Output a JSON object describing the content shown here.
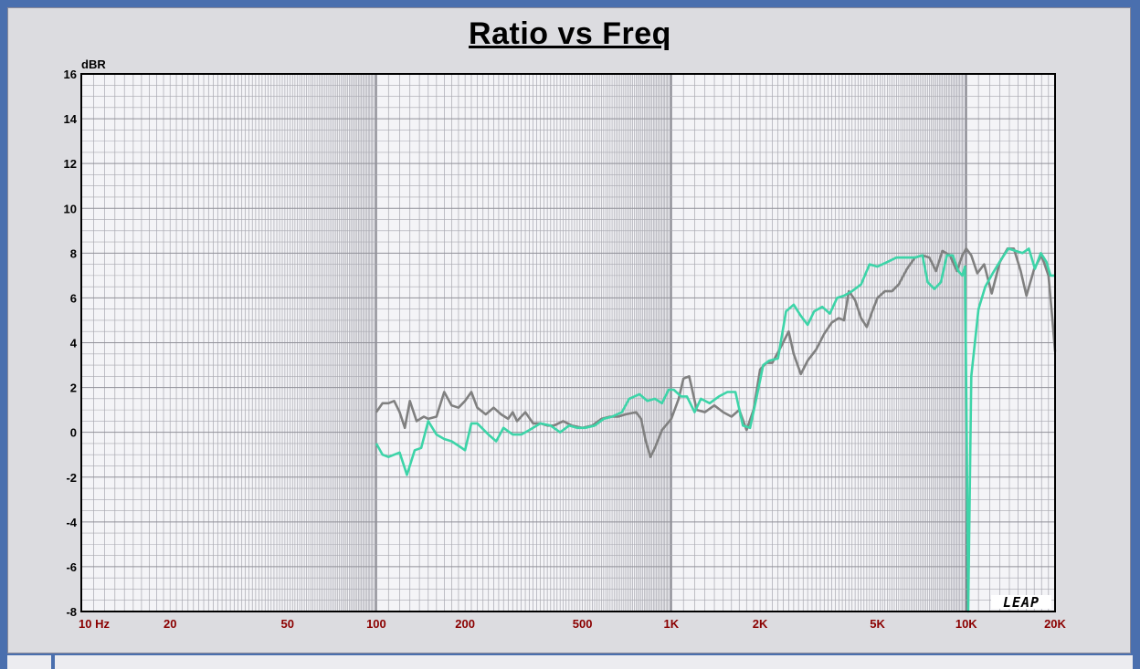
{
  "chart_data": {
    "type": "line",
    "title": "Ratio vs Freq",
    "ylabel": "dBR",
    "xscale": "log",
    "xlim": [
      10,
      20000
    ],
    "ylim": [
      -8,
      16
    ],
    "grid": true,
    "x_tick_labels": [
      "10  Hz",
      "20",
      "50",
      "100",
      "200",
      "500",
      "1K",
      "2K",
      "5K",
      "10K",
      "20K"
    ],
    "x_tick_values": [
      10,
      20,
      50,
      100,
      200,
      500,
      1000,
      2000,
      5000,
      10000,
      20000
    ],
    "y_tick_values": [
      16,
      14,
      12,
      10,
      8,
      6,
      4,
      2,
      0,
      -2,
      -4,
      -6,
      -8
    ],
    "watermark": "LEAP",
    "colors": {
      "gray_series": "#808080",
      "teal_series": "#3dd4a8",
      "axis_label": "#8b0000",
      "grid": "#a8a8b0"
    },
    "series": [
      {
        "color": "#808080",
        "points": [
          [
            100,
            0.9
          ],
          [
            105,
            1.3
          ],
          [
            110,
            1.3
          ],
          [
            115,
            1.4
          ],
          [
            120,
            0.9
          ],
          [
            125,
            0.2
          ],
          [
            130,
            1.4
          ],
          [
            137,
            0.5
          ],
          [
            145,
            0.7
          ],
          [
            150,
            0.6
          ],
          [
            160,
            0.7
          ],
          [
            170,
            1.8
          ],
          [
            180,
            1.2
          ],
          [
            190,
            1.1
          ],
          [
            200,
            1.4
          ],
          [
            210,
            1.8
          ],
          [
            220,
            1.1
          ],
          [
            235,
            0.8
          ],
          [
            250,
            1.1
          ],
          [
            265,
            0.8
          ],
          [
            280,
            0.6
          ],
          [
            290,
            0.9
          ],
          [
            300,
            0.5
          ],
          [
            320,
            0.9
          ],
          [
            340,
            0.4
          ],
          [
            360,
            0.4
          ],
          [
            380,
            0.3
          ],
          [
            400,
            0.3
          ],
          [
            430,
            0.5
          ],
          [
            460,
            0.3
          ],
          [
            500,
            0.2
          ],
          [
            540,
            0.3
          ],
          [
            580,
            0.6
          ],
          [
            620,
            0.7
          ],
          [
            660,
            0.7
          ],
          [
            700,
            0.8
          ],
          [
            760,
            0.9
          ],
          [
            790,
            0.6
          ],
          [
            820,
            -0.4
          ],
          [
            850,
            -1.1
          ],
          [
            880,
            -0.7
          ],
          [
            930,
            0.1
          ],
          [
            1000,
            0.6
          ],
          [
            1060,
            1.5
          ],
          [
            1100,
            2.4
          ],
          [
            1150,
            2.5
          ],
          [
            1220,
            1.0
          ],
          [
            1300,
            0.9
          ],
          [
            1400,
            1.2
          ],
          [
            1500,
            0.9
          ],
          [
            1600,
            0.7
          ],
          [
            1700,
            1.0
          ],
          [
            1800,
            0.1
          ],
          [
            1900,
            1.0
          ],
          [
            2000,
            2.8
          ],
          [
            2100,
            3.1
          ],
          [
            2200,
            3.1
          ],
          [
            2350,
            3.8
          ],
          [
            2500,
            4.5
          ],
          [
            2600,
            3.5
          ],
          [
            2750,
            2.6
          ],
          [
            2900,
            3.2
          ],
          [
            3100,
            3.7
          ],
          [
            3300,
            4.4
          ],
          [
            3500,
            4.9
          ],
          [
            3700,
            5.1
          ],
          [
            3850,
            5.0
          ],
          [
            4000,
            6.3
          ],
          [
            4200,
            5.9
          ],
          [
            4400,
            5.1
          ],
          [
            4600,
            4.7
          ],
          [
            4800,
            5.4
          ],
          [
            5000,
            6.0
          ],
          [
            5300,
            6.3
          ],
          [
            5600,
            6.3
          ],
          [
            5900,
            6.6
          ],
          [
            6300,
            7.3
          ],
          [
            6700,
            7.8
          ],
          [
            7100,
            7.9
          ],
          [
            7500,
            7.8
          ],
          [
            7900,
            7.2
          ],
          [
            8300,
            8.1
          ],
          [
            8800,
            7.9
          ],
          [
            9300,
            7.2
          ],
          [
            9700,
            7.9
          ],
          [
            10000,
            8.2
          ],
          [
            10400,
            7.9
          ],
          [
            10900,
            7.1
          ],
          [
            11500,
            7.5
          ],
          [
            12200,
            6.2
          ],
          [
            13000,
            7.6
          ],
          [
            13800,
            8.2
          ],
          [
            14500,
            8.2
          ],
          [
            15300,
            7.2
          ],
          [
            16000,
            6.1
          ],
          [
            17000,
            7.3
          ],
          [
            18000,
            7.9
          ],
          [
            19000,
            7.0
          ],
          [
            19600,
            5.0
          ],
          [
            20000,
            3.6
          ]
        ]
      },
      {
        "color": "#3dd4a8",
        "points": [
          [
            100,
            -0.5
          ],
          [
            105,
            -1.0
          ],
          [
            110,
            -1.1
          ],
          [
            115,
            -1.0
          ],
          [
            120,
            -0.9
          ],
          [
            127,
            -1.9
          ],
          [
            135,
            -0.8
          ],
          [
            142,
            -0.7
          ],
          [
            150,
            0.5
          ],
          [
            160,
            -0.1
          ],
          [
            170,
            -0.3
          ],
          [
            180,
            -0.4
          ],
          [
            190,
            -0.6
          ],
          [
            200,
            -0.8
          ],
          [
            210,
            0.4
          ],
          [
            220,
            0.4
          ],
          [
            240,
            -0.1
          ],
          [
            255,
            -0.4
          ],
          [
            270,
            0.2
          ],
          [
            290,
            -0.1
          ],
          [
            310,
            -0.1
          ],
          [
            330,
            0.1
          ],
          [
            360,
            0.4
          ],
          [
            390,
            0.3
          ],
          [
            420,
            0.0
          ],
          [
            450,
            0.3
          ],
          [
            480,
            0.2
          ],
          [
            510,
            0.2
          ],
          [
            550,
            0.3
          ],
          [
            590,
            0.6
          ],
          [
            630,
            0.7
          ],
          [
            680,
            0.9
          ],
          [
            720,
            1.5
          ],
          [
            780,
            1.7
          ],
          [
            830,
            1.4
          ],
          [
            880,
            1.5
          ],
          [
            930,
            1.3
          ],
          [
            980,
            1.9
          ],
          [
            1020,
            1.9
          ],
          [
            1080,
            1.6
          ],
          [
            1130,
            1.6
          ],
          [
            1200,
            0.9
          ],
          [
            1260,
            1.5
          ],
          [
            1350,
            1.3
          ],
          [
            1450,
            1.6
          ],
          [
            1550,
            1.8
          ],
          [
            1650,
            1.8
          ],
          [
            1750,
            0.3
          ],
          [
            1850,
            0.2
          ],
          [
            1950,
            1.6
          ],
          [
            2050,
            3.0
          ],
          [
            2150,
            3.2
          ],
          [
            2300,
            3.3
          ],
          [
            2450,
            5.4
          ],
          [
            2600,
            5.7
          ],
          [
            2750,
            5.2
          ],
          [
            2900,
            4.8
          ],
          [
            3050,
            5.4
          ],
          [
            3250,
            5.6
          ],
          [
            3450,
            5.3
          ],
          [
            3650,
            6.0
          ],
          [
            3850,
            6.1
          ],
          [
            4100,
            6.3
          ],
          [
            4400,
            6.6
          ],
          [
            4700,
            7.5
          ],
          [
            5000,
            7.4
          ],
          [
            5400,
            7.6
          ],
          [
            5800,
            7.8
          ],
          [
            6200,
            7.8
          ],
          [
            6700,
            7.8
          ],
          [
            7100,
            7.9
          ],
          [
            7400,
            6.7
          ],
          [
            7800,
            6.4
          ],
          [
            8200,
            6.7
          ],
          [
            8600,
            7.9
          ],
          [
            9000,
            7.9
          ],
          [
            9400,
            7.2
          ],
          [
            9700,
            7.0
          ],
          [
            9900,
            7.4
          ],
          [
            10050,
            -1.0
          ],
          [
            10150,
            -8.0
          ],
          [
            10400,
            2.5
          ],
          [
            11000,
            5.5
          ],
          [
            11600,
            6.5
          ],
          [
            12300,
            7.1
          ],
          [
            13100,
            7.7
          ],
          [
            13900,
            8.2
          ],
          [
            14700,
            8.1
          ],
          [
            15500,
            8.0
          ],
          [
            16300,
            8.2
          ],
          [
            17100,
            7.3
          ],
          [
            17900,
            8.0
          ],
          [
            18700,
            7.6
          ],
          [
            19300,
            7.0
          ],
          [
            20000,
            7.0
          ]
        ]
      }
    ]
  }
}
